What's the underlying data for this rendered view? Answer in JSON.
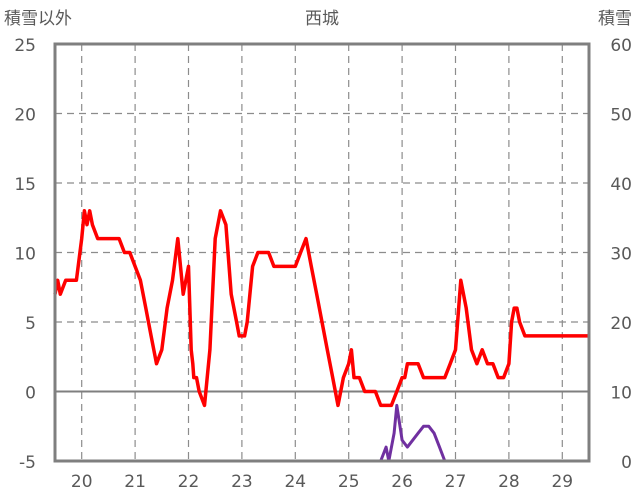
{
  "chart_data": {
    "type": "line",
    "title": "西城",
    "ylabel_left": "積雪以外",
    "ylabel_right": "積雪",
    "ylim_left": [
      -5,
      25
    ],
    "ylim_right": [
      0,
      60
    ],
    "yticks_left": [
      "25",
      "20",
      "15",
      "10",
      "5",
      "0",
      "-5"
    ],
    "yticks_right": [
      "60",
      "50",
      "40",
      "30",
      "20",
      "10",
      "0"
    ],
    "xlim": [
      19.5,
      29.5
    ],
    "x_ticks": [
      "20",
      "21",
      "22",
      "23",
      "24",
      "25",
      "26",
      "27",
      "28",
      "29"
    ],
    "grid": true,
    "series": [
      {
        "axis": "left",
        "color": "#ff0000",
        "x": [
          19.5,
          19.55,
          19.6,
          19.7,
          19.8,
          19.9,
          20.0,
          20.05,
          20.1,
          20.15,
          20.2,
          20.3,
          20.4,
          20.5,
          20.6,
          20.7,
          20.8,
          20.9,
          21.0,
          21.1,
          21.2,
          21.3,
          21.4,
          21.5,
          21.6,
          21.7,
          21.8,
          21.9,
          22.0,
          22.05,
          22.08,
          22.1,
          22.12,
          22.15,
          22.2,
          22.3,
          22.4,
          22.5,
          22.6,
          22.7,
          22.8,
          22.9,
          22.95,
          23.0,
          23.05,
          23.1,
          23.15,
          23.2,
          23.3,
          23.4,
          23.5,
          23.6,
          23.7,
          23.8,
          23.9,
          24.0,
          24.1,
          24.2,
          24.3,
          24.4,
          24.5,
          24.6,
          24.7,
          24.8,
          24.9,
          25.0,
          25.05,
          25.1,
          25.2,
          25.3,
          25.4,
          25.5,
          25.6,
          25.7,
          25.8,
          25.9,
          26.0,
          26.05,
          26.1,
          26.2,
          26.3,
          26.4,
          26.5,
          26.6,
          26.7,
          26.8,
          26.9,
          27.0,
          27.1,
          27.2,
          27.3,
          27.4,
          27.5,
          27.6,
          27.7,
          27.8,
          27.9,
          28.0,
          28.05,
          28.1,
          28.15,
          28.2,
          28.3,
          28.35,
          28.4,
          28.45,
          28.5,
          28.6,
          28.7,
          28.8,
          28.9,
          29.0,
          29.1,
          29.2,
          29.3,
          29.4,
          29.5
        ],
        "values": [
          7,
          8,
          7,
          8,
          8,
          8,
          11,
          13,
          12,
          13,
          12,
          11,
          11,
          11,
          11,
          11,
          10,
          10,
          9,
          8,
          6,
          4,
          2,
          3,
          6,
          8,
          11,
          7,
          9,
          3,
          2,
          1,
          1,
          1,
          0,
          -1,
          3,
          11,
          13,
          12,
          7,
          5,
          4,
          4,
          4,
          5,
          7,
          9,
          10,
          10,
          10,
          9,
          9,
          9,
          9,
          9,
          10,
          11,
          9,
          7,
          5,
          3,
          1,
          -1,
          1,
          2,
          3,
          1,
          1,
          0,
          0,
          0,
          -1,
          -1,
          -1,
          0,
          1,
          1,
          2,
          2,
          2,
          1,
          1,
          1,
          1,
          1,
          2,
          3,
          8,
          6,
          3,
          2,
          3,
          2,
          2,
          1,
          1,
          2,
          5,
          6,
          6,
          5,
          4,
          4,
          4,
          4,
          4,
          4,
          4,
          4,
          4,
          4,
          4,
          4,
          4,
          4,
          4
        ],
        "labeled_points": "approximate"
      },
      {
        "axis": "right",
        "color": "#7030a0",
        "x": [
          19.5,
          25.6,
          25.7,
          25.75,
          25.85,
          25.9,
          26.0,
          26.1,
          26.2,
          26.3,
          26.4,
          26.5,
          26.6,
          26.7,
          26.8,
          26.9,
          29.5
        ],
        "values": [
          0,
          0,
          2,
          0,
          4,
          8,
          3,
          2,
          3,
          4,
          5,
          5,
          4,
          2,
          0,
          0,
          0
        ]
      }
    ]
  }
}
